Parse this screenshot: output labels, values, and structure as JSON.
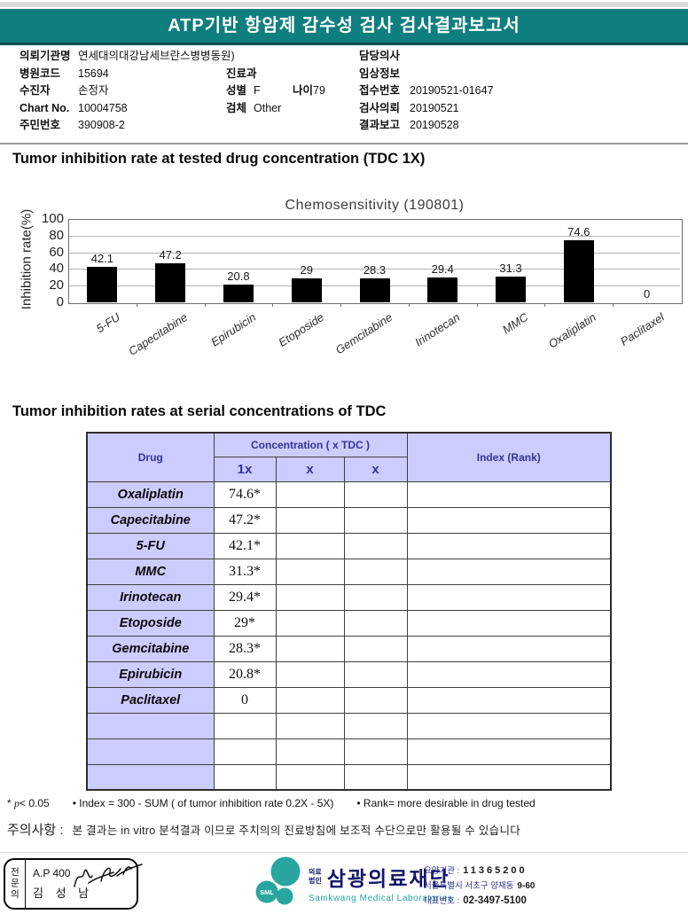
{
  "header": {
    "title": "ATP기반 항암제 감수성 검사 검사결과보고서"
  },
  "patient_info": {
    "rows": [
      {
        "l1": "의뢰기관명",
        "v1": "연세대의대강남세브란스병병동원)",
        "l3": "담당의사",
        "v3": ""
      },
      {
        "l1": "병원코드",
        "v1": "15694",
        "l2": "진료과",
        "v2": "",
        "l3": "임상정보",
        "v3": ""
      },
      {
        "l1": "수진자",
        "v1": "손정자",
        "l2": "성별",
        "v2": "F",
        "l2b": "나이",
        "v2b": "79",
        "l3": "접수번호",
        "v3": "20190521-01647"
      },
      {
        "l1": "Chart No.",
        "v1": "10004758",
        "l2": "검체",
        "v2": "Other",
        "l3": "검사의뢰",
        "v3": "20190521"
      },
      {
        "l1": "주민번호",
        "v1": "390908-2",
        "l3": "결과보고",
        "v3": "20190528"
      }
    ]
  },
  "sections": {
    "chart_section_title": "Tumor inhibition rate at tested drug concentration (TDC 1X)",
    "table_section_title": "Tumor inhibition rates at serial concentrations of TDC"
  },
  "chart_data": {
    "type": "bar",
    "title": "Chemosensitivity (190801)",
    "ylabel": "Inhibition rate(%)",
    "ylim": [
      0,
      100
    ],
    "yticks": [
      0,
      20,
      40,
      60,
      80,
      100
    ],
    "grid": true,
    "categories": [
      "5-FU",
      "Capecitabine",
      "Epirubicin",
      "Etoposide",
      "Gemcitabine",
      "Irinotecan",
      "MMC",
      "Oxaliplatin",
      "Paclitaxel"
    ],
    "values": [
      42.1,
      47.2,
      20.8,
      29,
      28.3,
      29.4,
      31.3,
      74.6,
      0
    ],
    "value_labels": [
      "42.1",
      "47.2",
      "20.8",
      "29",
      "28.3",
      "29.4",
      "31.3",
      "74.6",
      "0"
    ],
    "bar_color": "#000000"
  },
  "table": {
    "header": {
      "drug": "Drug",
      "concentration": "Concentration ( x TDC )",
      "c1": "1x",
      "c2": "x",
      "c3": "x",
      "index": "Index (Rank)"
    },
    "rows": [
      {
        "drug": "Oxaliplatin",
        "c1": "74.6*",
        "c2": "",
        "c3": "",
        "index": ""
      },
      {
        "drug": "Capecitabine",
        "c1": "47.2*",
        "c2": "",
        "c3": "",
        "index": ""
      },
      {
        "drug": "5-FU",
        "c1": "42.1*",
        "c2": "",
        "c3": "",
        "index": ""
      },
      {
        "drug": "MMC",
        "c1": "31.3*",
        "c2": "",
        "c3": "",
        "index": ""
      },
      {
        "drug": "Irinotecan",
        "c1": "29.4*",
        "c2": "",
        "c3": "",
        "index": ""
      },
      {
        "drug": "Etoposide",
        "c1": "29*",
        "c2": "",
        "c3": "",
        "index": ""
      },
      {
        "drug": "Gemcitabine",
        "c1": "28.3*",
        "c2": "",
        "c3": "",
        "index": ""
      },
      {
        "drug": "Epirubicin",
        "c1": "20.8*",
        "c2": "",
        "c3": "",
        "index": ""
      },
      {
        "drug": "Paclitaxel",
        "c1": "0",
        "c2": "",
        "c3": "",
        "index": ""
      },
      {
        "drug": "",
        "c1": "",
        "c2": "",
        "c3": "",
        "index": ""
      },
      {
        "drug": "",
        "c1": "",
        "c2": "",
        "c3": "",
        "index": ""
      },
      {
        "drug": "",
        "c1": "",
        "c2": "",
        "c3": "",
        "index": ""
      }
    ]
  },
  "footnotes": {
    "sig_star": "*",
    "sig_p": "p",
    "sig_rest": "< 0.05",
    "index_note": "• Index = 300 - SUM ( of tumor inhibition rate 0.2X  -  5X)",
    "rank_note": "• Rank= more desirable in drug tested"
  },
  "caution": {
    "label": "주의사항 :",
    "text": "본 결과는 in vitro 분석결과 이므로 주치의의 진료방침에 보조적 수단으로만 활용될 수 있습니다"
  },
  "footer": {
    "stamp": {
      "role": "전문의",
      "cert": "A.P 400",
      "name": "김 성 남"
    },
    "logo": {
      "badge": "SML",
      "org_type_line1": "의료",
      "org_type_line2": "법인",
      "name": "삼광의료재단",
      "name_en": "Samkwang Medical Laboratories",
      "teal": "#29a59f",
      "navy": "#15156b"
    },
    "contact": {
      "line1_label": "요양기관 :",
      "line1_value": "11365200",
      "line2_label": "서울특별시 서초구 양재동",
      "line2_value": "9-60",
      "line3_label": "대표번호 :",
      "line3_value": "02-3497-5100"
    }
  }
}
